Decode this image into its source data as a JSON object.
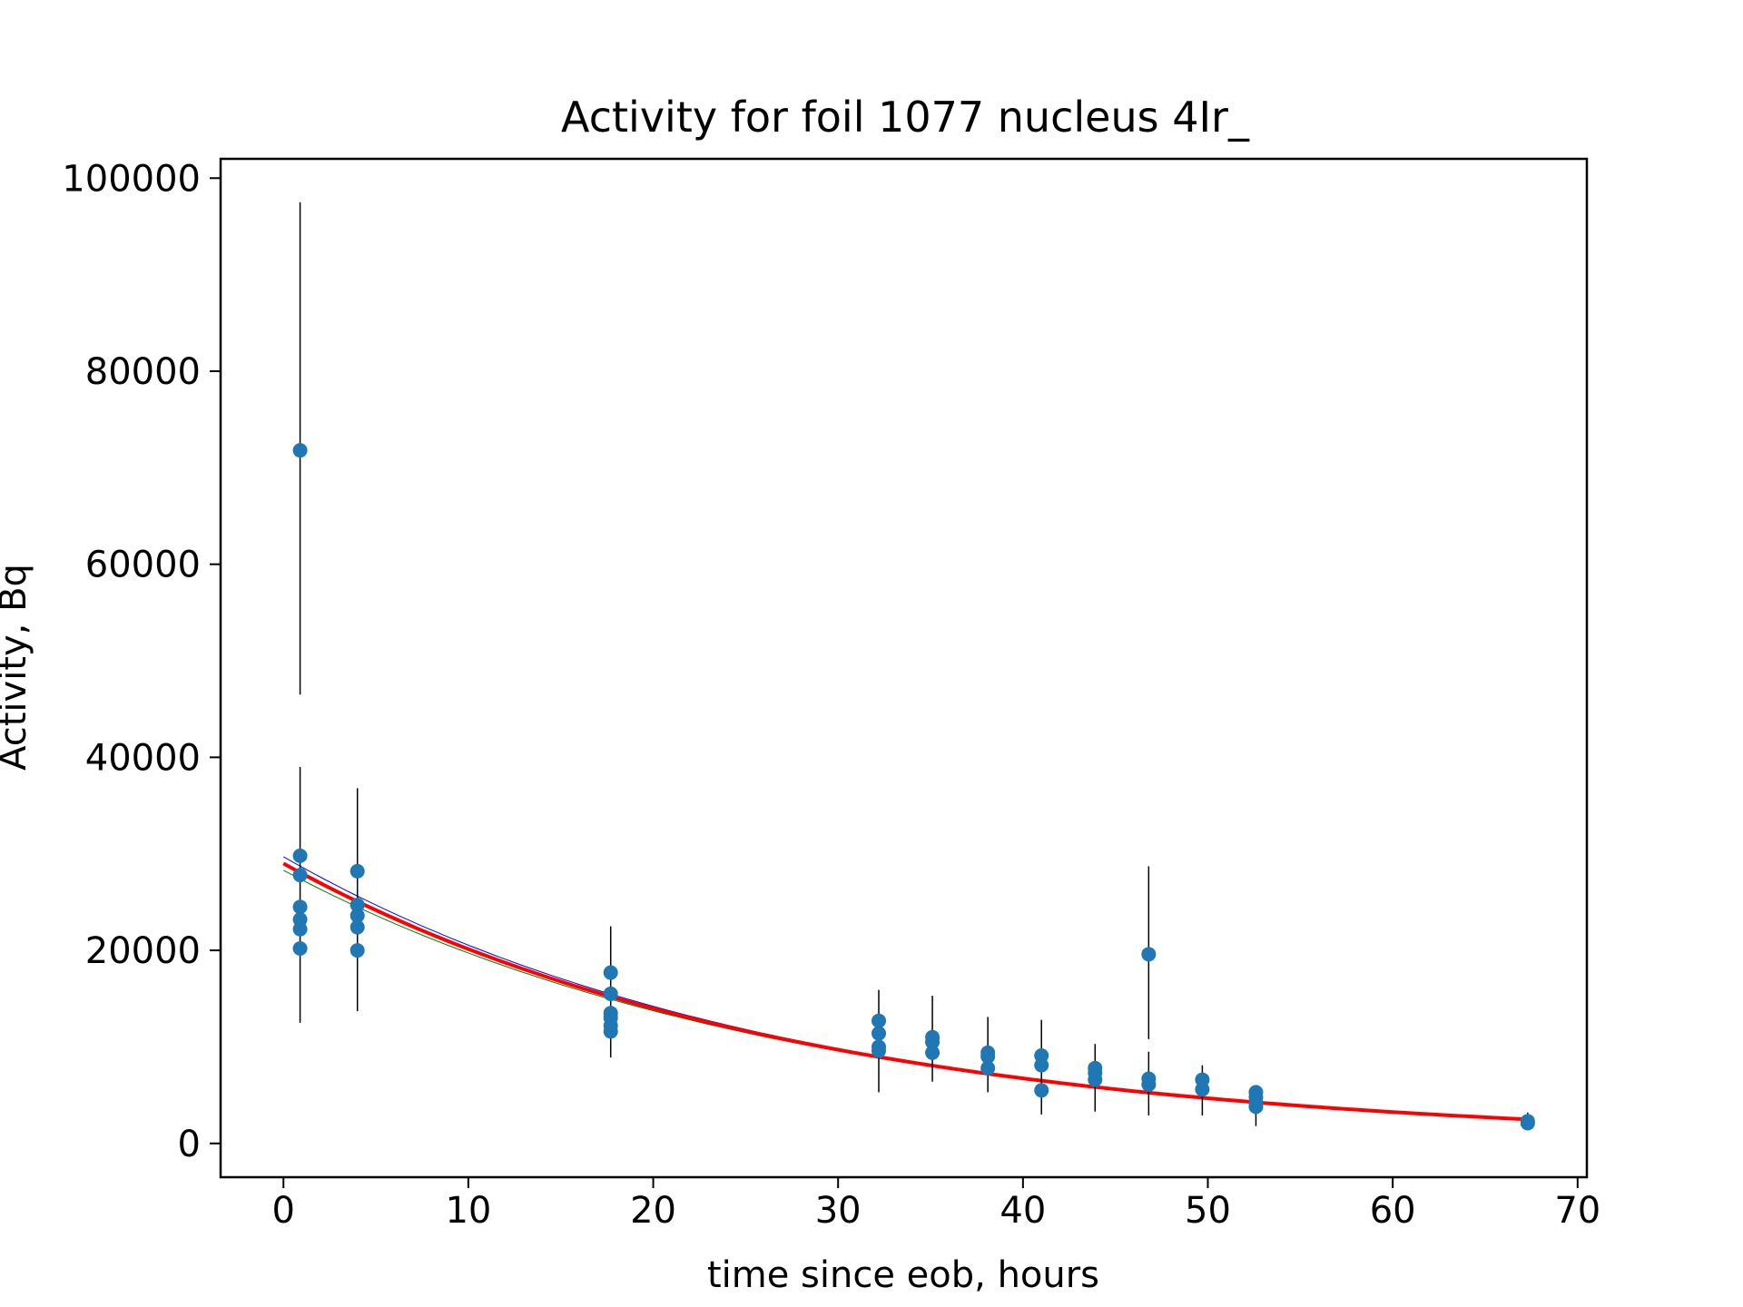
{
  "chart_data": {
    "type": "scatter",
    "title": "Activity for foil 1077 nucleus 4Ir_",
    "xlabel": "time since eob, hours",
    "ylabel": "Activity, Bq",
    "xlim": [
      -3.4,
      70.5
    ],
    "ylim": [
      -3500,
      102000
    ],
    "xticks": [
      0,
      10,
      20,
      30,
      40,
      50,
      60,
      70
    ],
    "yticks": [
      0,
      20000,
      40000,
      60000,
      80000,
      100000
    ],
    "grid": false,
    "points": [
      {
        "x": 0.9,
        "y": 71800,
        "err_low": 46500,
        "err_high": 97500
      },
      {
        "x": 0.9,
        "y": 29800,
        "err_low": 12500,
        "err_high": 39000
      },
      {
        "x": 0.9,
        "y": 27800
      },
      {
        "x": 0.9,
        "y": 24500
      },
      {
        "x": 0.9,
        "y": 23200
      },
      {
        "x": 0.9,
        "y": 22200
      },
      {
        "x": 0.9,
        "y": 20200
      },
      {
        "x": 4.0,
        "y": 28200,
        "err_low": 13700,
        "err_high": 36800
      },
      {
        "x": 4.0,
        "y": 24700
      },
      {
        "x": 4.0,
        "y": 23600
      },
      {
        "x": 4.0,
        "y": 22400
      },
      {
        "x": 4.0,
        "y": 20000
      },
      {
        "x": 17.7,
        "y": 17700,
        "err_low": 8900,
        "err_high": 22500
      },
      {
        "x": 17.7,
        "y": 15500
      },
      {
        "x": 17.7,
        "y": 13500
      },
      {
        "x": 17.7,
        "y": 13000
      },
      {
        "x": 17.7,
        "y": 12200
      },
      {
        "x": 17.7,
        "y": 11600
      },
      {
        "x": 32.2,
        "y": 12700,
        "err_low": 5300,
        "err_high": 15900
      },
      {
        "x": 32.2,
        "y": 11400
      },
      {
        "x": 32.2,
        "y": 10000
      },
      {
        "x": 32.2,
        "y": 9600
      },
      {
        "x": 35.1,
        "y": 11000,
        "err_low": 6400,
        "err_high": 15300
      },
      {
        "x": 35.1,
        "y": 10500
      },
      {
        "x": 35.1,
        "y": 9400
      },
      {
        "x": 38.1,
        "y": 9400,
        "err_low": 5300,
        "err_high": 13100
      },
      {
        "x": 38.1,
        "y": 9000
      },
      {
        "x": 38.1,
        "y": 7800
      },
      {
        "x": 41.0,
        "y": 9100,
        "err_low": 3000,
        "err_high": 12800
      },
      {
        "x": 41.0,
        "y": 8100
      },
      {
        "x": 41.0,
        "y": 5500
      },
      {
        "x": 43.9,
        "y": 7800,
        "err_low": 3300,
        "err_high": 10300
      },
      {
        "x": 43.9,
        "y": 7300
      },
      {
        "x": 43.9,
        "y": 6600
      },
      {
        "x": 46.8,
        "y": 19600,
        "err_low": 10800,
        "err_high": 28700
      },
      {
        "x": 46.8,
        "y": 6700,
        "err_low": 2900,
        "err_high": 9500
      },
      {
        "x": 46.8,
        "y": 6100
      },
      {
        "x": 49.7,
        "y": 6600,
        "err_low": 2900,
        "err_high": 8100
      },
      {
        "x": 49.7,
        "y": 5600
      },
      {
        "x": 52.6,
        "y": 5300,
        "err_low": 1800,
        "err_high": 6000
      },
      {
        "x": 52.6,
        "y": 4800
      },
      {
        "x": 52.6,
        "y": 4200
      },
      {
        "x": 52.6,
        "y": 3800
      },
      {
        "x": 67.3,
        "y": 2300,
        "err_low": 2000,
        "err_high": 3200
      },
      {
        "x": 67.3,
        "y": 2100
      }
    ],
    "fits": [
      {
        "color": "#0000ff",
        "A0": 29700,
        "half_life": 18.8,
        "width": 1
      },
      {
        "color": "#008000",
        "A0": 28300,
        "half_life": 19.2,
        "width": 1
      },
      {
        "color": "#ff0000",
        "A0": 29000,
        "half_life": 19.0,
        "width": 4
      }
    ],
    "colors": {
      "points": "#1f77b4",
      "errorbars": "#000000"
    }
  }
}
